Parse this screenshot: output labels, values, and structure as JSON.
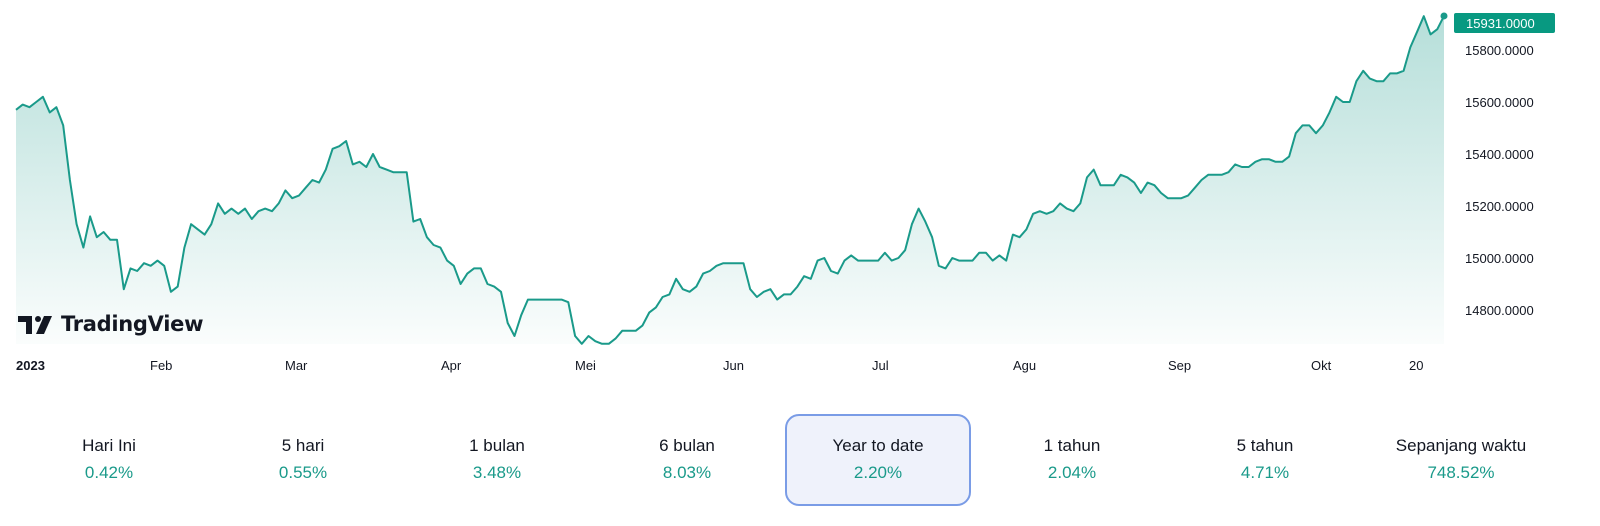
{
  "chart_data": {
    "type": "area",
    "series": [
      {
        "values": [
          15570,
          15590,
          15580,
          15600,
          15620,
          15560,
          15580,
          15510,
          15300,
          15130,
          15040,
          15160,
          15080,
          15100,
          15070,
          15070,
          14880,
          14960,
          14950,
          14980,
          14970,
          14990,
          14970,
          14870,
          14890,
          15040,
          15130,
          15110,
          15090,
          15130,
          15210,
          15170,
          15190,
          15170,
          15190,
          15150,
          15180,
          15190,
          15180,
          15210,
          15260,
          15230,
          15240,
          15270,
          15300,
          15290,
          15340,
          15420,
          15430,
          15450,
          15360,
          15370,
          15350,
          15400,
          15350,
          15340,
          15330,
          15330,
          15330,
          15140,
          15150,
          15080,
          15050,
          15040,
          14990,
          14970,
          14900,
          14940,
          14960,
          14960,
          14900,
          14890,
          14870,
          14750,
          14700,
          14780,
          14840,
          14840,
          14840,
          14840,
          14840,
          14840,
          14830,
          14700,
          14670,
          14700,
          14680,
          14670,
          14670,
          14690,
          14720,
          14720,
          14720,
          14740,
          14790,
          14810,
          14850,
          14860,
          14920,
          14880,
          14870,
          14890,
          14940,
          14950,
          14970,
          14980,
          14980,
          14980,
          14980,
          14880,
          14850,
          14870,
          14880,
          14840,
          14860,
          14860,
          14890,
          14930,
          14920,
          14990,
          15000,
          14950,
          14940,
          14990,
          15010,
          14990,
          14990,
          14990,
          14990,
          15020,
          14990,
          15000,
          15030,
          15130,
          15190,
          15140,
          15080,
          14970,
          14960,
          15000,
          14990,
          14990,
          14990,
          15020,
          15020,
          14990,
          15010,
          14990,
          15090,
          15080,
          15110,
          15170,
          15180,
          15170,
          15180,
          15210,
          15190,
          15180,
          15210,
          15310,
          15340,
          15280,
          15280,
          15280,
          15320,
          15310,
          15290,
          15250,
          15290,
          15280,
          15250,
          15230,
          15230,
          15230,
          15240,
          15270,
          15300,
          15320,
          15320,
          15320,
          15330,
          15360,
          15350,
          15350,
          15370,
          15380,
          15380,
          15370,
          15370,
          15390,
          15480,
          15510,
          15510,
          15480,
          15510,
          15560,
          15620,
          15600,
          15600,
          15680,
          15720,
          15690,
          15680,
          15680,
          15710,
          15710,
          15720,
          15810,
          15870,
          15930,
          15860,
          15880,
          15931
        ]
      }
    ],
    "x_ticks": [
      "2023",
      "Feb",
      "Mar",
      "Apr",
      "Mei",
      "Jun",
      "Jul",
      "Agu",
      "Sep",
      "Okt",
      "20"
    ],
    "y_ticks": [
      "15800.0000",
      "15600.0000",
      "15400.0000",
      "15200.0000",
      "15000.0000",
      "14800.0000"
    ],
    "ylim": [
      14650,
      16000
    ],
    "last_value_label": "15931.0000",
    "line_color": "#1a9a8a",
    "label_bg_color": "#089981",
    "grid": false
  },
  "logo": {
    "text": "TradingView"
  },
  "performance": [
    {
      "label": "Hari Ini",
      "value": "0.42%"
    },
    {
      "label": "5 hari",
      "value": "0.55%"
    },
    {
      "label": "1 bulan",
      "value": "3.48%"
    },
    {
      "label": "6 bulan",
      "value": "8.03%"
    },
    {
      "label": "Year to date",
      "value": "2.20%",
      "active": true
    },
    {
      "label": "1 tahun",
      "value": "2.04%"
    },
    {
      "label": "5 tahun",
      "value": "4.71%"
    },
    {
      "label": "Sepanjang waktu",
      "value": "748.52%"
    }
  ],
  "colors": {
    "accent": "#1a9a8a",
    "active_border": "#7a9ce6",
    "active_bg": "#eff2fb"
  }
}
